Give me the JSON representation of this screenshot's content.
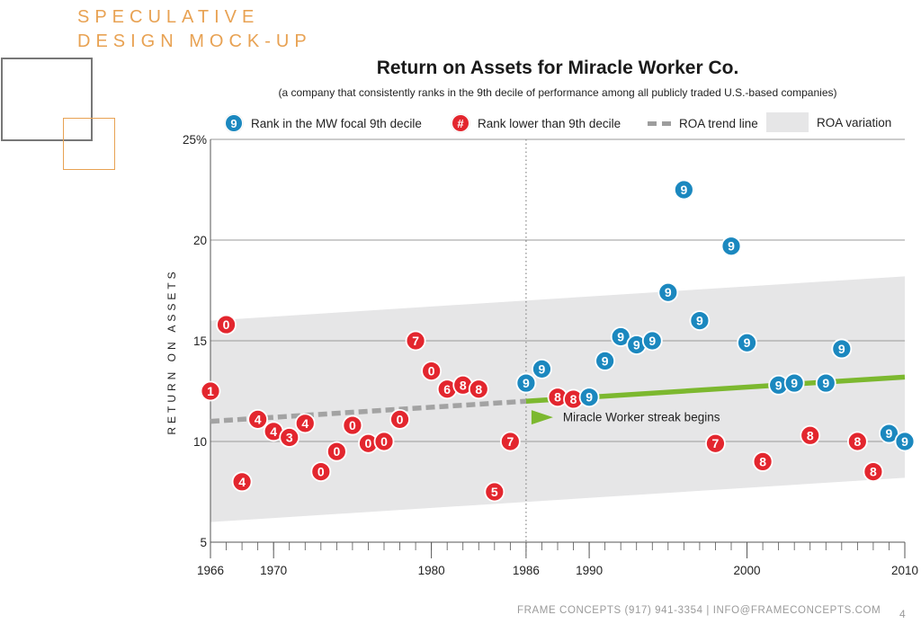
{
  "brand": {
    "line1": "SPECULATIVE",
    "line2": "DESIGN MOCK-UP"
  },
  "colors": {
    "nine": "#1b88bf",
    "other": "#e3262e",
    "trend_pre": "#a3a3a3",
    "trend_post": "#7cb82f",
    "band": "#e6e6e7",
    "orange": "#e8a253"
  },
  "legend": {
    "nine_symbol": "9",
    "nine_label": "Rank in the MW focal 9th decile",
    "other_symbol": "#",
    "other_label": "Rank lower than 9th decile",
    "trend_label": "ROA trend line",
    "band_label": "ROA variation"
  },
  "chart_data": {
    "type": "scatter",
    "title": "Return on Assets for Miracle Worker Co.",
    "subtitle": "(a company that consistently ranks in the 9th decile of performance among all publicly traded U.S.-based companies)",
    "xlabel": "",
    "ylabel": "RETURN ON ASSETS",
    "xlim": [
      1966,
      2010
    ],
    "ylim": [
      5,
      25
    ],
    "x_ticks": [
      1966,
      1970,
      1980,
      1986,
      1990,
      2000,
      2010
    ],
    "y_ticks": [
      {
        "value": 5,
        "label": "5"
      },
      {
        "value": 10,
        "label": "10"
      },
      {
        "value": 15,
        "label": "15"
      },
      {
        "value": 20,
        "label": "20"
      },
      {
        "value": 25,
        "label": "25%"
      }
    ],
    "streak_year": 1986,
    "annotation": "Miracle Worker streak begins",
    "trend_pre": {
      "x": [
        1966,
        1986
      ],
      "y": [
        11.0,
        12.0
      ]
    },
    "trend_post": {
      "x": [
        1986,
        2010
      ],
      "y": [
        12.0,
        13.2
      ]
    },
    "variation_band": {
      "x": [
        1966,
        2010
      ],
      "lower": [
        6.0,
        8.2
      ],
      "upper": [
        16.0,
        18.2
      ]
    },
    "series": [
      {
        "name": "Rank lower than 9th decile",
        "points": [
          {
            "x": 1966,
            "y": 12.5,
            "label": "1"
          },
          {
            "x": 1967,
            "y": 15.8,
            "label": "0"
          },
          {
            "x": 1968,
            "y": 8.0,
            "label": "4"
          },
          {
            "x": 1969,
            "y": 11.1,
            "label": "4"
          },
          {
            "x": 1970,
            "y": 10.5,
            "label": "4"
          },
          {
            "x": 1971,
            "y": 10.2,
            "label": "3"
          },
          {
            "x": 1972,
            "y": 10.9,
            "label": "4"
          },
          {
            "x": 1973,
            "y": 8.5,
            "label": "0"
          },
          {
            "x": 1974,
            "y": 9.5,
            "label": "0"
          },
          {
            "x": 1975,
            "y": 10.8,
            "label": "0"
          },
          {
            "x": 1976,
            "y": 9.9,
            "label": "0"
          },
          {
            "x": 1977,
            "y": 10.0,
            "label": "0"
          },
          {
            "x": 1978,
            "y": 11.1,
            "label": "0"
          },
          {
            "x": 1979,
            "y": 15.0,
            "label": "7"
          },
          {
            "x": 1980,
            "y": 13.5,
            "label": "0"
          },
          {
            "x": 1981,
            "y": 12.6,
            "label": "6"
          },
          {
            "x": 1982,
            "y": 12.8,
            "label": "8"
          },
          {
            "x": 1983,
            "y": 12.6,
            "label": "8"
          },
          {
            "x": 1984,
            "y": 7.5,
            "label": "5"
          },
          {
            "x": 1985,
            "y": 10.0,
            "label": "7"
          },
          {
            "x": 1988,
            "y": 12.2,
            "label": "8"
          },
          {
            "x": 1989,
            "y": 12.1,
            "label": "8"
          },
          {
            "x": 1998,
            "y": 9.9,
            "label": "7"
          },
          {
            "x": 2001,
            "y": 9.0,
            "label": "8"
          },
          {
            "x": 2004,
            "y": 10.3,
            "label": "8"
          },
          {
            "x": 2007,
            "y": 10.0,
            "label": "8"
          },
          {
            "x": 2008,
            "y": 8.5,
            "label": "8"
          }
        ]
      },
      {
        "name": "Rank in the MW focal 9th decile",
        "points": [
          {
            "x": 1986,
            "y": 12.9,
            "label": "9"
          },
          {
            "x": 1987,
            "y": 13.6,
            "label": "9"
          },
          {
            "x": 1990,
            "y": 12.2,
            "label": "9"
          },
          {
            "x": 1991,
            "y": 14.0,
            "label": "9"
          },
          {
            "x": 1992,
            "y": 15.2,
            "label": "9"
          },
          {
            "x": 1993,
            "y": 14.8,
            "label": "9"
          },
          {
            "x": 1994,
            "y": 15.0,
            "label": "9"
          },
          {
            "x": 1995,
            "y": 17.4,
            "label": "9"
          },
          {
            "x": 1996,
            "y": 22.5,
            "label": "9"
          },
          {
            "x": 1997,
            "y": 16.0,
            "label": "9"
          },
          {
            "x": 1999,
            "y": 19.7,
            "label": "9"
          },
          {
            "x": 2000,
            "y": 14.9,
            "label": "9"
          },
          {
            "x": 2002,
            "y": 12.8,
            "label": "9"
          },
          {
            "x": 2003,
            "y": 12.9,
            "label": "9"
          },
          {
            "x": 2005,
            "y": 12.9,
            "label": "9"
          },
          {
            "x": 2006,
            "y": 14.6,
            "label": "9"
          },
          {
            "x": 2009,
            "y": 10.4,
            "label": "9"
          },
          {
            "x": 2010,
            "y": 10.0,
            "label": "9"
          }
        ]
      }
    ]
  },
  "footer": {
    "text": "FRAME CONCEPTS (917) 941-3354 | INFO@FRAMECONCEPTS.COM",
    "page": "4"
  }
}
